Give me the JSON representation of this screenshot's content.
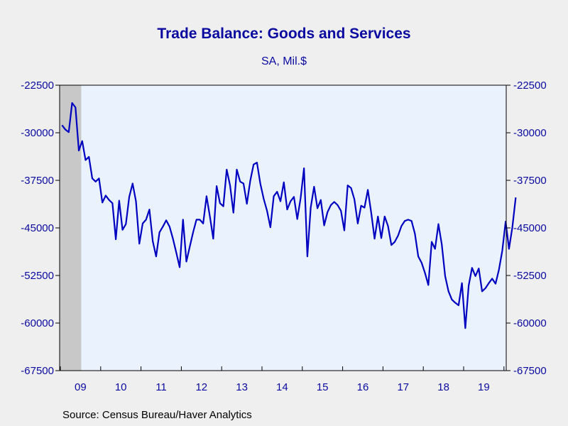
{
  "chart_data": {
    "type": "line",
    "title": "Trade Balance: Goods and Services",
    "subtitle": "SA, Mil.$",
    "xlabel": "",
    "ylabel": "",
    "source": "Source:  Census Bureau/Haver Analytics",
    "ylim": [
      -67500,
      -22500
    ],
    "yticks": [
      -22500,
      -30000,
      -37500,
      -45000,
      -52500,
      -60000,
      -67500
    ],
    "y_tick_labels": [
      "-22500",
      "-30000",
      "-37500",
      "-45000",
      "-52500",
      "-60000",
      "-67500"
    ],
    "x_categories": [
      "09",
      "10",
      "11",
      "12",
      "13",
      "14",
      "15",
      "16",
      "17",
      "18",
      "19"
    ],
    "grid": false,
    "recession_shading": {
      "from": "2009-01",
      "to": "2009-06"
    },
    "colors": {
      "line": "#0000c0",
      "plot_bg": "#eaf2fe",
      "text": "#0a0aa0",
      "recession": "#c8c8c8"
    },
    "series": [
      {
        "start": "2009-01",
        "frequency": "monthly",
        "values": [
          -28800,
          -29500,
          -29900,
          -25300,
          -26000,
          -32800,
          -31300,
          -34300,
          -33800,
          -37200,
          -37700,
          -37200,
          -41000,
          -39900,
          -40600,
          -41100,
          -46800,
          -40700,
          -45300,
          -44400,
          -40100,
          -38000,
          -40800,
          -47500,
          -44300,
          -43700,
          -42100,
          -47100,
          -49500,
          -45700,
          -44800,
          -43800,
          -44800,
          -46700,
          -48900,
          -51200,
          -43700,
          -50300,
          -48000,
          -45700,
          -43700,
          -43700,
          -44300,
          -40000,
          -43200,
          -46700,
          -38400,
          -41100,
          -41600,
          -35800,
          -38300,
          -42600,
          -35800,
          -37700,
          -38000,
          -41200,
          -37600,
          -35000,
          -34700,
          -38000,
          -40400,
          -42300,
          -44900,
          -40000,
          -39300,
          -40800,
          -37800,
          -42100,
          -40800,
          -40100,
          -43600,
          -40300,
          -35600,
          -49500,
          -41800,
          -38500,
          -41900,
          -40600,
          -44600,
          -42500,
          -41400,
          -40900,
          -41400,
          -42300,
          -45400,
          -38300,
          -38700,
          -40500,
          -44300,
          -41500,
          -41800,
          -39000,
          -42600,
          -46700,
          -43200,
          -46600,
          -43200,
          -44700,
          -47700,
          -47200,
          -46200,
          -44700,
          -43900,
          -43700,
          -43900,
          -45900,
          -49500,
          -50500,
          -52100,
          -54000,
          -47200,
          -48300,
          -44400,
          -47600,
          -52600,
          -55000,
          -56300,
          -56800,
          -57200,
          -53700,
          -60800,
          -54100,
          -51300,
          -52600,
          -51400,
          -55000,
          -54500,
          -53700,
          -53000,
          -53800,
          -51600,
          -48600,
          -44000,
          -48300,
          -44900,
          -40200
        ]
      }
    ]
  }
}
